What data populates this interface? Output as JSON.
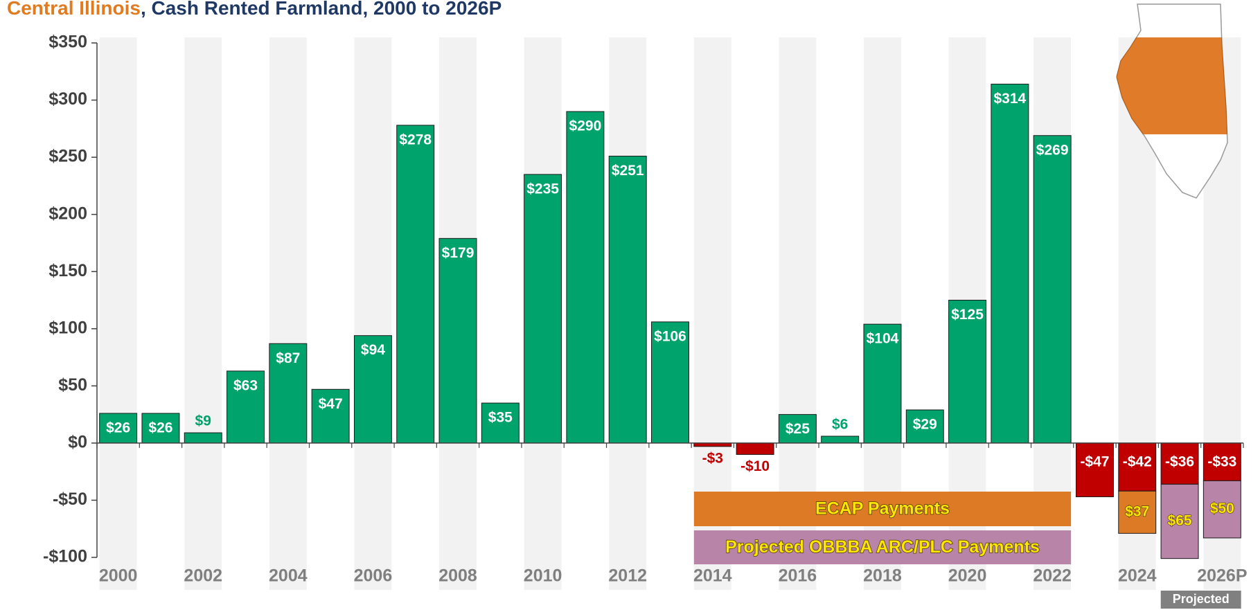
{
  "chart_data": {
    "type": "bar",
    "title_parts": [
      "Central Illinois",
      ", Cash Rented Farmland, 2000 to 2026P"
    ],
    "title_colors": [
      "#e07b20",
      "#1f3864"
    ],
    "categories": [
      "2000",
      null,
      "2002",
      null,
      "2004",
      null,
      "2006",
      null,
      "2008",
      null,
      "2010",
      null,
      "2012",
      null,
      "2014",
      null,
      "2016",
      null,
      "2018",
      null,
      "2020",
      null,
      "2022",
      null,
      "2024",
      null,
      "2026P"
    ],
    "values": [
      26,
      26,
      9,
      63,
      87,
      47,
      94,
      278,
      179,
      35,
      235,
      290,
      251,
      106,
      -3,
      -10,
      25,
      6,
      104,
      29,
      125,
      314,
      269,
      -47,
      -42,
      -36,
      -33
    ],
    "value_labels": [
      "$26",
      "$26",
      "$9",
      "$63",
      "$87",
      "$47",
      "$94",
      "$278",
      "$179",
      "$35",
      "$235",
      "$290",
      "$251",
      "$106",
      "-$3",
      "-$10",
      "$25",
      "$6",
      "$104",
      "$29",
      "$125",
      "$314",
      "$269",
      "-$47",
      "-$42",
      "-$36",
      "-$33"
    ],
    "positive_color": "#00a36c",
    "negative_color": "#c00000",
    "series": [
      {
        "name": "ECAP Payments",
        "color": "#dc7a26",
        "values": [
          null,
          null,
          null,
          null,
          null,
          null,
          null,
          null,
          null,
          null,
          null,
          null,
          null,
          null,
          null,
          null,
          null,
          null,
          null,
          null,
          null,
          null,
          null,
          null,
          37,
          null,
          null
        ],
        "value_labels": [
          null,
          null,
          null,
          null,
          null,
          null,
          null,
          null,
          null,
          null,
          null,
          null,
          null,
          null,
          null,
          null,
          null,
          null,
          null,
          null,
          null,
          null,
          null,
          null,
          "$37",
          null,
          null
        ]
      },
      {
        "name": "Projected OBBBA ARC/PLC Payments",
        "color": "#b884a8",
        "values": [
          null,
          null,
          null,
          null,
          null,
          null,
          null,
          null,
          null,
          null,
          null,
          null,
          null,
          null,
          null,
          null,
          null,
          null,
          null,
          null,
          null,
          null,
          null,
          null,
          null,
          65,
          50
        ],
        "value_labels": [
          null,
          null,
          null,
          null,
          null,
          null,
          null,
          null,
          null,
          null,
          null,
          null,
          null,
          null,
          null,
          null,
          null,
          null,
          null,
          null,
          null,
          null,
          null,
          null,
          null,
          "$65",
          "$50"
        ]
      }
    ],
    "annotation": "Projected",
    "ylim": [
      -100,
      350
    ],
    "yticks": [
      {
        "value": -100,
        "label": "-$100"
      },
      {
        "value": -50,
        "label": "-$50"
      },
      {
        "value": 0,
        "label": "$0"
      },
      {
        "value": 50,
        "label": "$50"
      },
      {
        "value": 100,
        "label": "$100"
      },
      {
        "value": 150,
        "label": "$150"
      },
      {
        "value": 200,
        "label": "$200"
      },
      {
        "value": 250,
        "label": "$250"
      },
      {
        "value": 300,
        "label": "$300"
      },
      {
        "value": 350,
        "label": "$350"
      }
    ],
    "grid": false
  }
}
